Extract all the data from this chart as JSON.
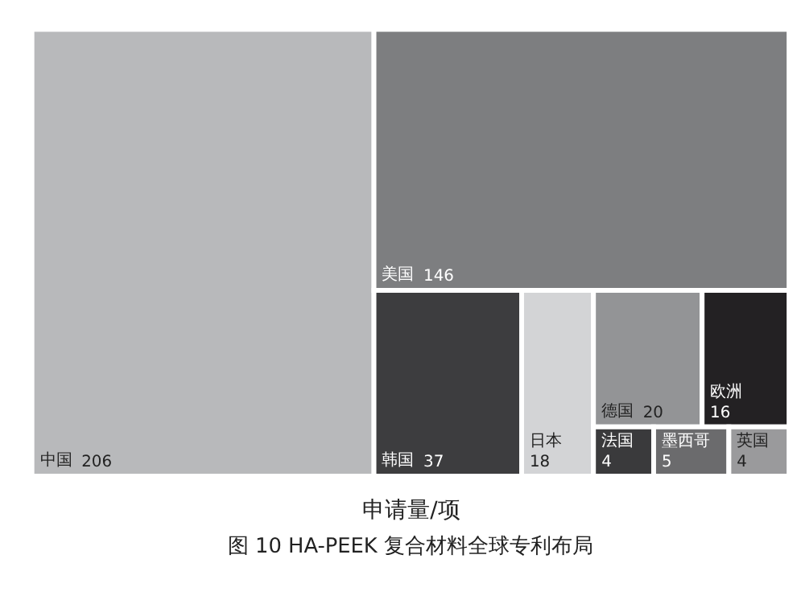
{
  "chart_data": {
    "type": "other",
    "title": "图 10 HA-PEEK 复合材料全球专利布局",
    "xlabel": "申请量/项",
    "categories": [
      "中国",
      "美国",
      "韩国",
      "日本",
      "德国",
      "欧洲",
      "法国",
      "墨西哥",
      "英国"
    ],
    "values": [
      206,
      146,
      37,
      18,
      20,
      16,
      4,
      5,
      4
    ],
    "data_labels": true,
    "colors": [
      "#b8b9bb",
      "#7d7e80",
      "#3d3d3f",
      "#d3d4d6",
      "#939496",
      "#232123",
      "#3a3a3c",
      "#6b6b6d",
      "#9a9a9c"
    ]
  }
}
